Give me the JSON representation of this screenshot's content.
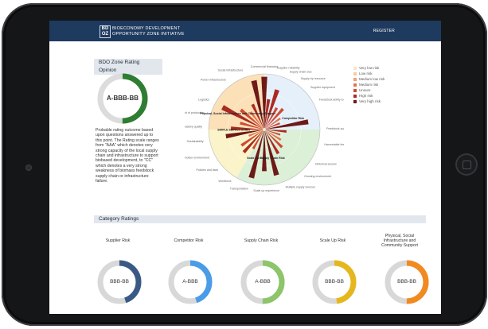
{
  "header": {
    "logo_top": "BD",
    "logo_bottom": "OZ",
    "brand_line1": "BIOECONOMY DEVELOPMENT",
    "brand_line2": "OPPORTUNITY ZONE INITIATIVE",
    "register_label": "REGISTER"
  },
  "opinion": {
    "title": "BDO Zone Rating Opinion",
    "rating": "A-BBB-BB",
    "fill_fraction": 0.5,
    "description": "Probable rating outcome based upon questions answered up to this point. The Rating scale ranges from \"AAA\" which denotes very strong capacity of the local supply chain and infrastructure to support biobased development, to \"CC\" which denotes a very strong weakness of biomass feedstock supply chain or infrastructure failure.",
    "color": "#2f7d32"
  },
  "legend": [
    {
      "label": "Very low risk",
      "color": "#fbe3c9"
    },
    {
      "label": "Low risk",
      "color": "#f7c9a6"
    },
    {
      "label": "Medium low risk",
      "color": "#f0a07a"
    },
    {
      "label": "Medium risk",
      "color": "#e2734f"
    },
    {
      "label": "Unsure",
      "color": "#cf4a32"
    },
    {
      "label": "High risk",
      "color": "#a92b22"
    },
    {
      "label": "Very high risk",
      "color": "#6e1a16"
    }
  ],
  "chart_data": {
    "type": "polar-bar",
    "sectors": [
      {
        "color": "#fbe0b8",
        "from": 270,
        "to": 360
      },
      {
        "color": "#e6f0fa",
        "from": 0,
        "to": 90
      },
      {
        "color": "#dcefd7",
        "from": 90,
        "to": 210
      },
      {
        "color": "#fbf3c9",
        "from": 210,
        "to": 270
      }
    ],
    "bars": [
      {
        "angle": 0,
        "value": 0.95,
        "color": "#6e1a16"
      },
      {
        "angle": 8,
        "value": 0.55,
        "color": "#a92b22"
      },
      {
        "angle": 18,
        "value": 0.75,
        "color": "#a92b22"
      },
      {
        "angle": 30,
        "value": 0.45,
        "color": "#cf4a32"
      },
      {
        "angle": 42,
        "value": 0.5,
        "color": "#cf4a32"
      },
      {
        "angle": 55,
        "value": 0.35,
        "color": "#e2734f"
      },
      {
        "angle": 68,
        "value": 0.3,
        "color": "#cf4a32"
      },
      {
        "angle": 80,
        "value": 0.8,
        "color": "#6e1a16"
      },
      {
        "angle": 95,
        "value": 0.4,
        "color": "#a92b22"
      },
      {
        "angle": 108,
        "value": 0.3,
        "color": "#cf4a32"
      },
      {
        "angle": 122,
        "value": 0.35,
        "color": "#e2734f"
      },
      {
        "angle": 135,
        "value": 0.45,
        "color": "#cf4a32"
      },
      {
        "angle": 150,
        "value": 0.5,
        "color": "#a92b22"
      },
      {
        "angle": 165,
        "value": 0.85,
        "color": "#6e1a16"
      },
      {
        "angle": 180,
        "value": 0.75,
        "color": "#6e1a16"
      },
      {
        "angle": 195,
        "value": 0.9,
        "color": "#6e1a16"
      },
      {
        "angle": 210,
        "value": 0.4,
        "color": "#cf4a32"
      },
      {
        "angle": 222,
        "value": 0.55,
        "color": "#a92b22"
      },
      {
        "angle": 235,
        "value": 0.5,
        "color": "#cf4a32"
      },
      {
        "angle": 248,
        "value": 0.3,
        "color": "#e2734f"
      },
      {
        "angle": 260,
        "value": 0.7,
        "color": "#6e1a16"
      },
      {
        "angle": 272,
        "value": 0.6,
        "color": "#a92b22"
      },
      {
        "angle": 285,
        "value": 0.45,
        "color": "#cf4a32"
      },
      {
        "angle": 298,
        "value": 0.85,
        "color": "#a92b22"
      },
      {
        "angle": 310,
        "value": 0.55,
        "color": "#cf4a32"
      },
      {
        "angle": 322,
        "value": 0.4,
        "color": "#e2734f"
      },
      {
        "angle": 335,
        "value": 0.5,
        "color": "#a92b22"
      },
      {
        "angle": 348,
        "value": 0.9,
        "color": "#6e1a16"
      }
    ],
    "axis_labels": [
      {
        "angle": 0,
        "text": "Commercial financing"
      },
      {
        "angle": 12,
        "text": "Supplier reliability"
      },
      {
        "angle": 24,
        "text": "Supply chain size"
      },
      {
        "angle": 36,
        "text": "Supply by resource"
      },
      {
        "angle": 48,
        "text": "Supplier equipment"
      },
      {
        "angle": 62,
        "text": "Feedstock ability to yield"
      },
      {
        "angle": 90,
        "text": "Feedstock quality"
      },
      {
        "angle": 105,
        "text": "Harvestable feedstock"
      },
      {
        "angle": 125,
        "text": "Historical access"
      },
      {
        "angle": 140,
        "text": "Growing environment"
      },
      {
        "angle": 160,
        "text": "Multiple supply sources"
      },
      {
        "angle": 178,
        "text": "Scale up experience"
      },
      {
        "angle": 195,
        "text": "Transportation"
      },
      {
        "angle": 212,
        "text": "Workforce"
      },
      {
        "angle": 228,
        "text": "Policies and laws"
      },
      {
        "angle": 242,
        "text": "Stakeholder environment"
      },
      {
        "angle": 258,
        "text": "Sustainability"
      },
      {
        "angle": 272,
        "text": "Regulatory quality"
      },
      {
        "angle": 285,
        "text": "Cost of production"
      },
      {
        "angle": 298,
        "text": "Logistics"
      },
      {
        "angle": 322,
        "text": "Power infrastructure"
      },
      {
        "angle": 340,
        "text": "Social infrastructure"
      }
    ],
    "notes": [
      {
        "angle": 300,
        "text": "Physical, Social Infrastructure and Community Support"
      },
      {
        "angle": 70,
        "text": "Competitor Risk"
      },
      {
        "angle": 268,
        "text": "SIMPLE SUPPLY CHAIN"
      },
      {
        "angle": 165,
        "text": "Supply Chain Risk"
      },
      {
        "angle": 195,
        "text": "Scale Up Risk"
      }
    ]
  },
  "categories": {
    "title": "Category Ratings",
    "items": [
      {
        "label": "Supplier Risk",
        "rating": "BBB-BB",
        "fill": 0.45,
        "color": "#3a5a85"
      },
      {
        "label": "Competitor Risk",
        "rating": "A-BBB",
        "fill": 0.45,
        "color": "#4a9be8"
      },
      {
        "label": "Supply Chain Risk",
        "rating": "A-BBB",
        "fill": 0.5,
        "color": "#8cc56a"
      },
      {
        "label": "Scale Up Risk",
        "rating": "BBB-BB",
        "fill": 0.48,
        "color": "#e6b71c"
      },
      {
        "label": "Physical, Social Infrastructure and Community Support",
        "rating": "BBB-BB",
        "fill": 0.5,
        "color": "#f18a20"
      }
    ]
  }
}
